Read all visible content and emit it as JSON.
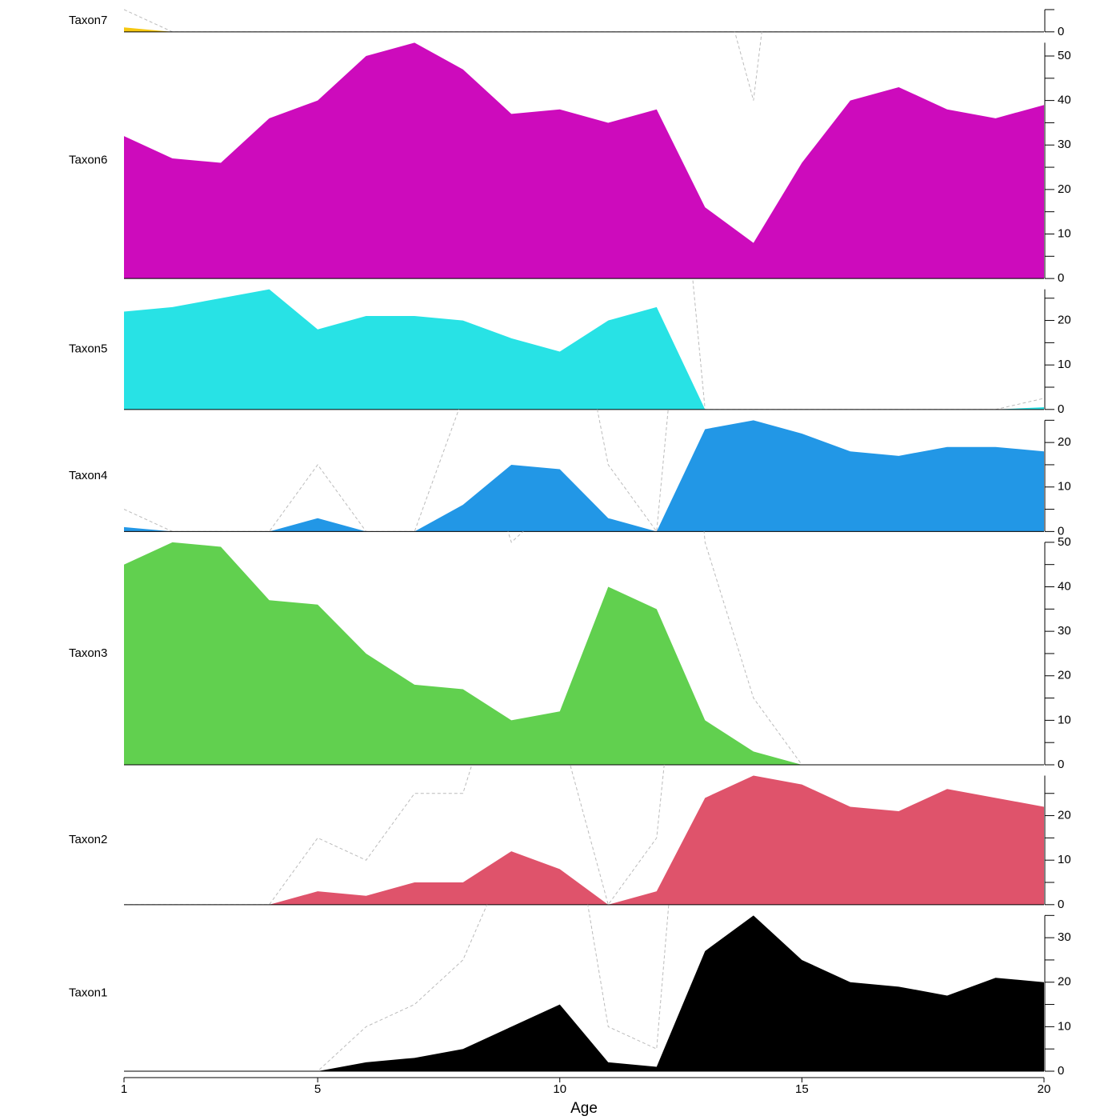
{
  "chart_data": {
    "type": "area",
    "xlabel": "Age",
    "x": [
      1,
      2,
      3,
      4,
      5,
      6,
      7,
      8,
      9,
      10,
      11,
      12,
      13,
      14,
      15,
      16,
      17,
      18,
      19,
      20
    ],
    "xlim": [
      1,
      20
    ],
    "xticks": [
      1,
      5,
      10,
      15,
      20
    ],
    "exaggeration": 5,
    "panels": [
      {
        "name": "Taxon7",
        "color": "#f5c710",
        "values": [
          1,
          0,
          0,
          0,
          0,
          0,
          0,
          0,
          0,
          0,
          0,
          0,
          0,
          0,
          0,
          0,
          0,
          0,
          0,
          0
        ],
        "ylim": [
          0,
          5
        ],
        "yticks": [
          0
        ],
        "minor_yticks": [
          5
        ]
      },
      {
        "name": "Taxon6",
        "color": "#cd0bbc",
        "values": [
          32,
          27,
          26,
          36,
          40,
          50,
          53,
          47,
          37,
          38,
          35,
          38,
          16,
          8,
          26,
          40,
          43,
          38,
          36,
          39
        ],
        "ylim": [
          0,
          53
        ],
        "yticks": [
          0,
          10,
          20,
          30,
          40,
          50
        ],
        "minor_yticks": [
          5,
          15,
          25,
          35,
          45
        ]
      },
      {
        "name": "Taxon5",
        "color": "#28e2e5",
        "values": [
          22,
          23,
          25,
          27,
          18,
          21,
          21,
          20,
          16,
          13,
          20,
          23,
          0,
          0,
          0,
          0,
          0,
          0,
          0,
          0.5
        ],
        "ylim": [
          0,
          27
        ],
        "yticks": [
          0,
          10,
          20
        ],
        "minor_yticks": [
          5,
          15,
          25
        ]
      },
      {
        "name": "Taxon4",
        "color": "#2297e6",
        "values": [
          1,
          0,
          0,
          0,
          3,
          0,
          0,
          6,
          15,
          14,
          3,
          0,
          23,
          25,
          22,
          18,
          17,
          19,
          19,
          18
        ],
        "ylim": [
          0,
          25
        ],
        "yticks": [
          0,
          10,
          20
        ],
        "minor_yticks": [
          5,
          15,
          25
        ]
      },
      {
        "name": "Taxon3",
        "color": "#61d04f",
        "values": [
          45,
          50,
          49,
          37,
          36,
          25,
          18,
          17,
          10,
          12,
          40,
          35,
          10,
          3,
          0,
          0,
          0,
          0,
          0,
          0
        ],
        "ylim": [
          0,
          50
        ],
        "yticks": [
          0,
          10,
          20,
          30,
          40,
          50
        ],
        "minor_yticks": [
          5,
          15,
          25,
          35,
          45
        ]
      },
      {
        "name": "Taxon2",
        "color": "#df536b",
        "values": [
          0,
          0,
          0,
          0,
          3,
          2,
          5,
          5,
          12,
          8,
          0,
          3,
          24,
          29,
          27,
          22,
          21,
          26,
          24,
          22
        ],
        "ylim": [
          0,
          29
        ],
        "yticks": [
          0,
          10,
          20
        ],
        "minor_yticks": [
          5,
          15,
          25
        ]
      },
      {
        "name": "Taxon1",
        "color": "#000000",
        "values": [
          0,
          0,
          0,
          0,
          0,
          2,
          3,
          5,
          10,
          15,
          2,
          1,
          27,
          35,
          25,
          20,
          19,
          17,
          21,
          20
        ],
        "ylim": [
          0,
          35
        ],
        "yticks": [
          0,
          10,
          20,
          30
        ],
        "minor_yticks": [
          5,
          15,
          25,
          35
        ]
      }
    ]
  }
}
